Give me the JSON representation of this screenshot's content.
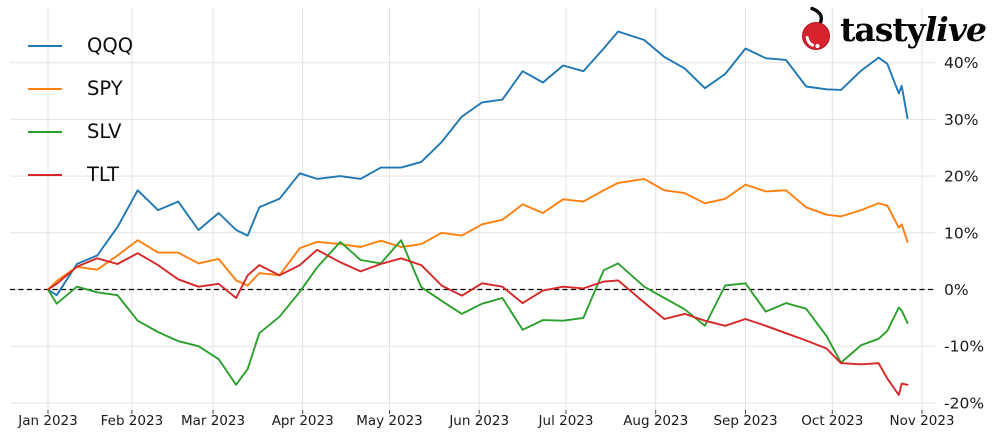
{
  "branding": {
    "logo_text_regular": "tasty",
    "logo_text_italic": "live",
    "logo_color": "#050505",
    "cherry_color": "#d6232e"
  },
  "chart_data": {
    "type": "line",
    "title": "",
    "xlabel": "",
    "ylabel": "",
    "grid": true,
    "legend_position": "upper left",
    "y_axis_side": "right",
    "zero_line_dashed": true,
    "ylim": [
      -22,
      48
    ],
    "y_ticks": [
      {
        "label": "40%",
        "value": 40
      },
      {
        "label": "30%",
        "value": 30
      },
      {
        "label": "20%",
        "value": 20
      },
      {
        "label": "10%",
        "value": 10
      },
      {
        "label": "0%",
        "value": 0
      },
      {
        "label": "-10%",
        "value": -10
      },
      {
        "label": "-20%",
        "value": -20
      }
    ],
    "x_ticks": [
      {
        "label": "Jan 2023",
        "day": 0
      },
      {
        "label": "Feb 2023",
        "day": 29
      },
      {
        "label": "Mar 2023",
        "day": 57
      },
      {
        "label": "Apr 2023",
        "day": 88
      },
      {
        "label": "May 2023",
        "day": 118
      },
      {
        "label": "Jun 2023",
        "day": 149
      },
      {
        "label": "Jul 2023",
        "day": 179
      },
      {
        "label": "Aug 2023",
        "day": 210
      },
      {
        "label": "Sep 2023",
        "day": 241
      },
      {
        "label": "Oct 2023",
        "day": 271
      },
      {
        "label": "Nov 2023",
        "day": 302
      }
    ],
    "dates": [
      "2023-01-03",
      "2023-01-06",
      "2023-01-13",
      "2023-01-20",
      "2023-01-27",
      "2023-02-03",
      "2023-02-10",
      "2023-02-17",
      "2023-02-24",
      "2023-03-03",
      "2023-03-09",
      "2023-03-13",
      "2023-03-17",
      "2023-03-24",
      "2023-03-31",
      "2023-04-06",
      "2023-04-14",
      "2023-04-21",
      "2023-04-28",
      "2023-05-05",
      "2023-05-12",
      "2023-05-19",
      "2023-05-26",
      "2023-06-02",
      "2023-06-09",
      "2023-06-16",
      "2023-06-23",
      "2023-06-30",
      "2023-07-07",
      "2023-07-14",
      "2023-07-19",
      "2023-07-28",
      "2023-08-04",
      "2023-08-11",
      "2023-08-18",
      "2023-08-25",
      "2023-09-01",
      "2023-09-08",
      "2023-09-15",
      "2023-09-22",
      "2023-09-29",
      "2023-10-04",
      "2023-10-11",
      "2023-10-17",
      "2023-10-20",
      "2023-10-24",
      "2023-10-25",
      "2023-10-27"
    ],
    "unit": "percent YTD return",
    "series": [
      {
        "name": "QQQ",
        "color": "#1f77b4",
        "values": [
          0,
          -1,
          4.5,
          6,
          11,
          17.5,
          14,
          15.5,
          10.5,
          13.5,
          10.5,
          9.5,
          14.5,
          16,
          20.5,
          19.5,
          20,
          19.5,
          21.5,
          21.5,
          22.5,
          26,
          30.5,
          33,
          33.5,
          38.5,
          36.5,
          39.5,
          38.5,
          42.5,
          45.5,
          44,
          41,
          39,
          35.5,
          38,
          42.5,
          40.8,
          40.5,
          35.8,
          35.3,
          35.2,
          38.6,
          40.9,
          39.8,
          34.6,
          35.9,
          30.2
        ]
      },
      {
        "name": "SPY",
        "color": "#ff7f0e",
        "values": [
          0,
          1.5,
          4,
          3.5,
          6,
          8.7,
          6.5,
          6.5,
          4.6,
          5.4,
          1.6,
          0.7,
          2.9,
          2.5,
          7.3,
          8.4,
          8,
          7.5,
          8.6,
          7.5,
          8,
          10,
          9.5,
          11.5,
          12.3,
          15,
          13.5,
          15.9,
          15.5,
          17.5,
          18.8,
          19.5,
          17.5,
          17,
          15.2,
          16,
          18.5,
          17.3,
          17.5,
          14.5,
          13.2,
          12.9,
          14,
          15.2,
          14.8,
          10.9,
          11.5,
          8.4
        ]
      },
      {
        "name": "SLV",
        "color": "#2ca02c",
        "values": [
          0,
          -2.5,
          0.5,
          -0.5,
          -1,
          -5.5,
          -7.5,
          -9.1,
          -10,
          -12.3,
          -16.8,
          -14,
          -7.7,
          -4.8,
          -0.4,
          3.9,
          8.4,
          5.2,
          4.6,
          8.7,
          0.4,
          -2,
          -4.3,
          -2.5,
          -1.5,
          -7.1,
          -5.4,
          -5.5,
          -5,
          3.4,
          4.6,
          0.5,
          -1.5,
          -3.5,
          -6.4,
          0.7,
          1.1,
          -3.9,
          -2.4,
          -3.4,
          -8.2,
          -12.9,
          -9.8,
          -8.7,
          -7.3,
          -3.2,
          -3.7,
          -5.9
        ]
      },
      {
        "name": "TLT",
        "color": "#d62728",
        "values": [
          0,
          1,
          4,
          5.5,
          4.5,
          6.4,
          4.3,
          1.8,
          0.5,
          1,
          -1.5,
          2.5,
          4.3,
          2.5,
          4.3,
          7,
          4.8,
          3.2,
          4.5,
          5.5,
          4.3,
          0.7,
          -1.1,
          1.1,
          0.5,
          -2.4,
          -0.2,
          0.5,
          0.2,
          1.4,
          1.6,
          -2.3,
          -5.2,
          -4.3,
          -5.5,
          -6.4,
          -5.2,
          -6.4,
          -7.7,
          -9,
          -10.4,
          -13,
          -13.2,
          -13,
          -15.7,
          -18.6,
          -16.6,
          -16.8
        ]
      }
    ],
    "colors": {
      "grid": "#e3e3e3",
      "zero_line": "#000000",
      "tick_text": "#1a1a1a"
    }
  }
}
